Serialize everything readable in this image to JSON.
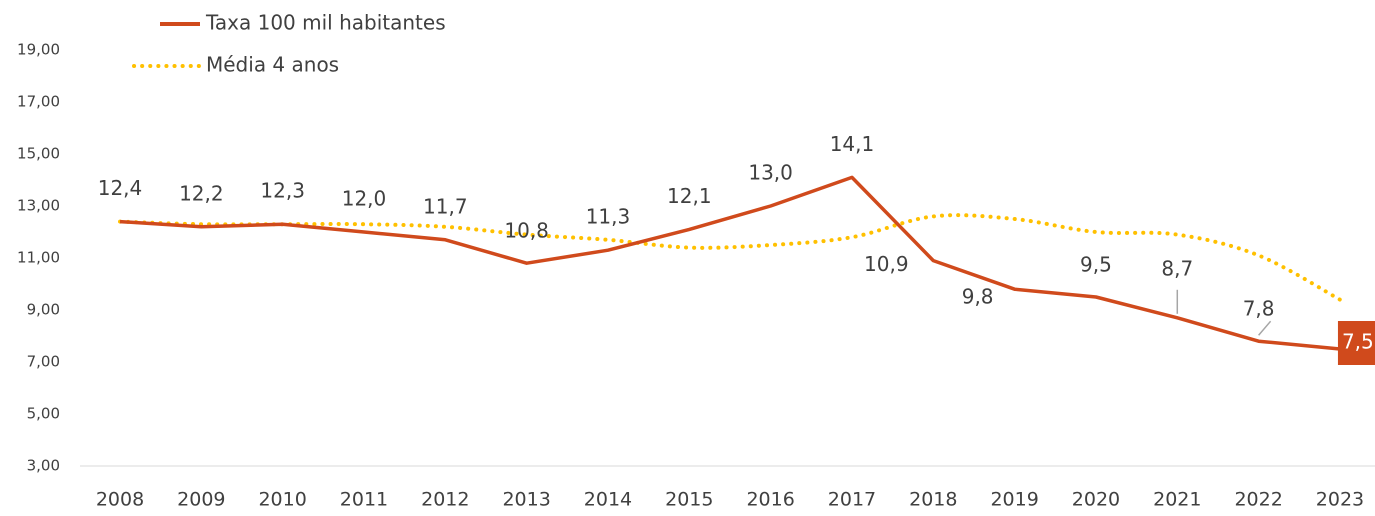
{
  "chart_data": {
    "type": "line",
    "categories": [
      "2008",
      "2009",
      "2010",
      "2011",
      "2012",
      "2013",
      "2014",
      "2015",
      "2016",
      "2017",
      "2018",
      "2019",
      "2020",
      "2021",
      "2022",
      "2023"
    ],
    "series": [
      {
        "name": "Taxa 100 mil habitantes",
        "color": "#D04A1C",
        "style": "solid",
        "values": [
          12.4,
          12.2,
          12.3,
          12.0,
          11.7,
          10.8,
          11.3,
          12.1,
          13.0,
          14.1,
          10.9,
          9.8,
          9.5,
          8.7,
          7.8,
          7.5
        ],
        "value_labels": [
          "12,4",
          "12,2",
          "12,3",
          "12,0",
          "11,7",
          "10,8",
          "11,3",
          "12,1",
          "13,0",
          "14,1",
          "10,9",
          "9,8",
          "9,5",
          "8,7",
          "7,8",
          "7,5"
        ]
      },
      {
        "name": "Média 4 anos",
        "color": "#FFC000",
        "style": "dotted",
        "values": [
          12.4,
          12.3,
          12.3,
          12.3,
          12.2,
          11.9,
          11.7,
          11.4,
          11.5,
          11.8,
          12.6,
          12.5,
          12.0,
          11.9,
          11.1,
          9.4
        ]
      }
    ],
    "ylim": [
      3,
      19
    ],
    "yticks": [
      {
        "value": 3,
        "label": "3,00"
      },
      {
        "value": 5,
        "label": "5,00"
      },
      {
        "value": 7,
        "label": "7,00"
      },
      {
        "value": 9,
        "label": "9,00"
      },
      {
        "value": 11,
        "label": "11,00"
      },
      {
        "value": 13,
        "label": "13,00"
      },
      {
        "value": 15,
        "label": "15,00"
      },
      {
        "value": 17,
        "label": "17,00"
      },
      {
        "value": 19,
        "label": "19,00"
      }
    ]
  }
}
